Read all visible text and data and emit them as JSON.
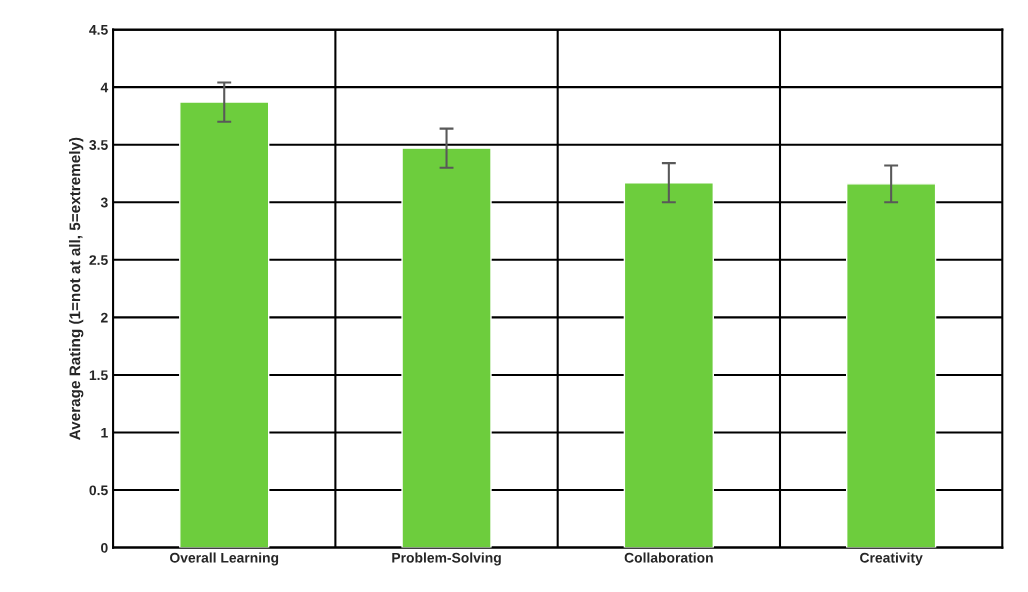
{
  "chart_data": {
    "type": "bar",
    "ylabel": "Average Rating (1=not at all, 5=extremely)",
    "categories": [
      "Overall Learning",
      "Problem-Solving",
      "Collaboration",
      "Creativity"
    ],
    "values": [
      3.87,
      3.47,
      3.17,
      3.16
    ],
    "errors": [
      0.17,
      0.17,
      0.17,
      0.16
    ],
    "color": "#6dcd3d",
    "ylim": [
      0,
      4.5
    ],
    "yticks": [
      0,
      0.5,
      1,
      1.5,
      2,
      2.5,
      3,
      3.5,
      4,
      4.5
    ],
    "grid": true
  }
}
